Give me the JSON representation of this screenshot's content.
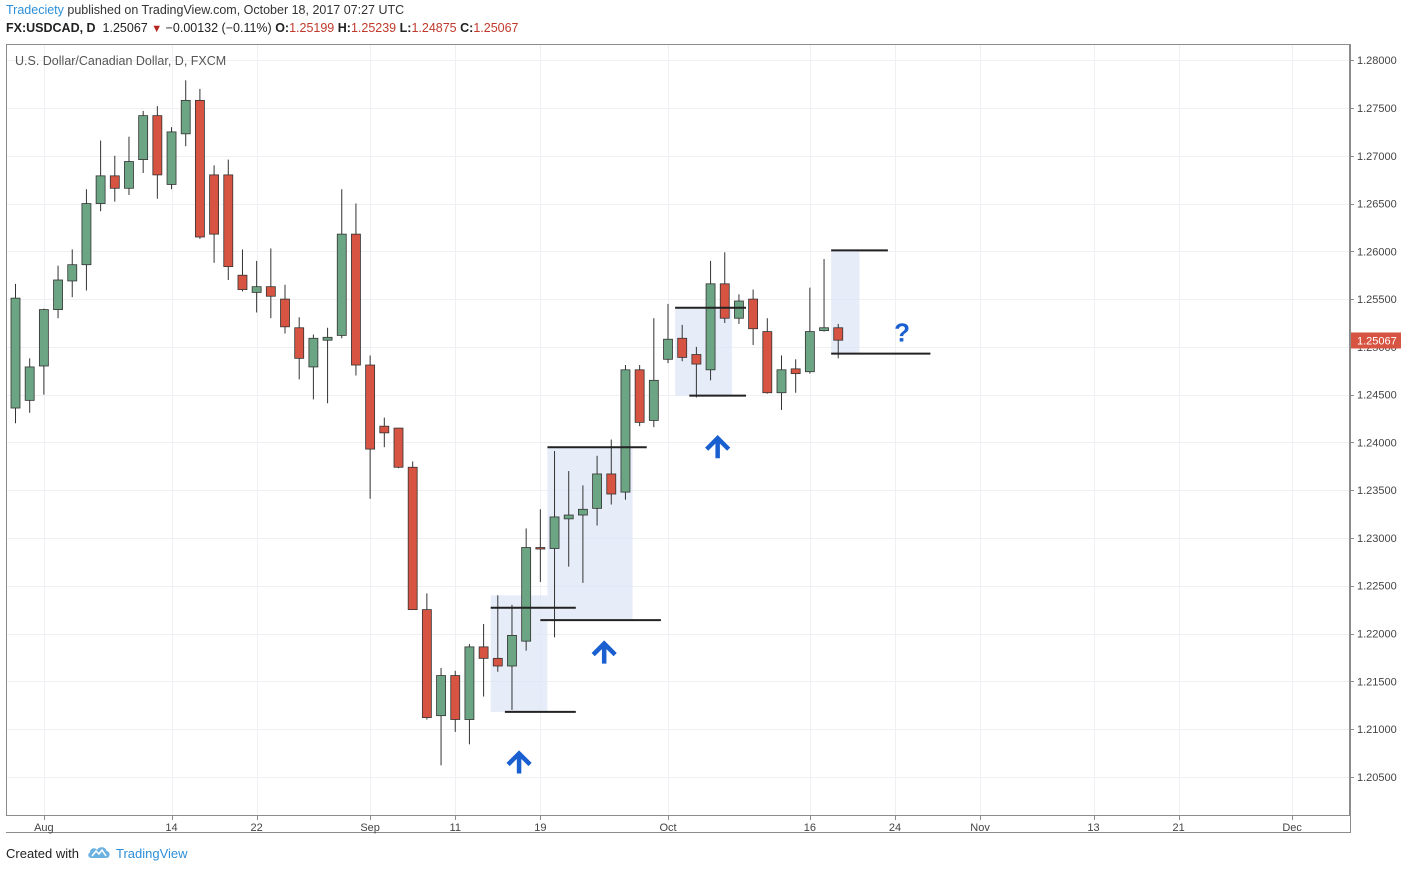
{
  "header": {
    "publisher": "Tradeciety",
    "published_text": "published on TradingView.com, October 18, 2017 07:27 UTC",
    "symbol": "FX:USDCAD, D",
    "last": "1.25067",
    "change": "−0.00132 (−0.11%)",
    "o_label": "O:",
    "o_value": "1.25199",
    "h_label": "H:",
    "h_value": "1.25239",
    "l_label": "L:",
    "l_value": "1.24875",
    "c_label": "C:",
    "c_value": "1.25067"
  },
  "footer": {
    "created_with": "Created with",
    "brand": "TradingView"
  },
  "colors": {
    "up": "#6ba583",
    "down": "#d75442",
    "outline": "#222222",
    "arrow": "#1a5fd0",
    "zone": "#dfe6f7",
    "price_tag": "#d75442"
  },
  "chart_data": {
    "type": "candlestick",
    "title": "U.S. Dollar/Canadian Dollar, D, FXCM",
    "ylim": [
      1.2009,
      1.2817
    ],
    "y_ticks": [
      1.205,
      1.21,
      1.215,
      1.22,
      1.225,
      1.23,
      1.235,
      1.24,
      1.245,
      1.25,
      1.255,
      1.26,
      1.265,
      1.27,
      1.275,
      1.28
    ],
    "y_tick_labels": [
      "1.20500",
      "1.21000",
      "1.21500",
      "1.22000",
      "1.22500",
      "1.23000",
      "1.23500",
      "1.24000",
      "1.24500",
      "1.25000",
      "1.25500",
      "1.26000",
      "1.26500",
      "1.27000",
      "1.27500",
      "1.28000"
    ],
    "x_tick_labels": [
      {
        "label": "Aug",
        "i": 2
      },
      {
        "label": "14",
        "i": 11
      },
      {
        "label": "22",
        "i": 17
      },
      {
        "label": "Sep",
        "i": 25
      },
      {
        "label": "11",
        "i": 31
      },
      {
        "label": "19",
        "i": 37
      },
      {
        "label": "Oct",
        "i": 46
      },
      {
        "label": "16",
        "i": 56
      },
      {
        "label": "24",
        "i": 62
      },
      {
        "label": "Nov",
        "i": 68
      },
      {
        "label": "13",
        "i": 76
      },
      {
        "label": "21",
        "i": 82
      },
      {
        "label": "Dec",
        "i": 90
      }
    ],
    "last_price_label": "1.25067",
    "last_price": 1.25067,
    "candles": [
      {
        "o": 1.2436,
        "h": 1.2566,
        "l": 1.242,
        "c": 1.2551
      },
      {
        "o": 1.2444,
        "h": 1.2488,
        "l": 1.2431,
        "c": 1.2479
      },
      {
        "o": 1.248,
        "h": 1.254,
        "l": 1.245,
        "c": 1.2539
      },
      {
        "o": 1.2539,
        "h": 1.2585,
        "l": 1.253,
        "c": 1.257
      },
      {
        "o": 1.2569,
        "h": 1.2602,
        "l": 1.2552,
        "c": 1.2586
      },
      {
        "o": 1.2586,
        "h": 1.2665,
        "l": 1.2559,
        "c": 1.265
      },
      {
        "o": 1.265,
        "h": 1.2716,
        "l": 1.2642,
        "c": 1.2679
      },
      {
        "o": 1.2679,
        "h": 1.27,
        "l": 1.2652,
        "c": 1.2666
      },
      {
        "o": 1.2666,
        "h": 1.272,
        "l": 1.2659,
        "c": 1.2694
      },
      {
        "o": 1.2696,
        "h": 1.2747,
        "l": 1.2682,
        "c": 1.2742
      },
      {
        "o": 1.2742,
        "h": 1.2752,
        "l": 1.2655,
        "c": 1.268
      },
      {
        "o": 1.267,
        "h": 1.273,
        "l": 1.2665,
        "c": 1.2725
      },
      {
        "o": 1.2723,
        "h": 1.2779,
        "l": 1.271,
        "c": 1.2758
      },
      {
        "o": 1.2758,
        "h": 1.277,
        "l": 1.2613,
        "c": 1.2615
      },
      {
        "o": 1.268,
        "h": 1.269,
        "l": 1.2588,
        "c": 1.2618
      },
      {
        "o": 1.268,
        "h": 1.2696,
        "l": 1.257,
        "c": 1.2584
      },
      {
        "o": 1.2575,
        "h": 1.2602,
        "l": 1.2558,
        "c": 1.256
      },
      {
        "o": 1.2557,
        "h": 1.259,
        "l": 1.2536,
        "c": 1.2563
      },
      {
        "o": 1.2563,
        "h": 1.2603,
        "l": 1.253,
        "c": 1.2553
      },
      {
        "o": 1.255,
        "h": 1.2565,
        "l": 1.2514,
        "c": 1.2521
      },
      {
        "o": 1.252,
        "h": 1.2531,
        "l": 1.2466,
        "c": 1.2488
      },
      {
        "o": 1.2479,
        "h": 1.2513,
        "l": 1.2445,
        "c": 1.2509
      },
      {
        "o": 1.2507,
        "h": 1.252,
        "l": 1.2441,
        "c": 1.251
      },
      {
        "o": 1.2512,
        "h": 1.2665,
        "l": 1.2509,
        "c": 1.2618
      },
      {
        "o": 1.2618,
        "h": 1.265,
        "l": 1.247,
        "c": 1.2481
      },
      {
        "o": 1.2481,
        "h": 1.2491,
        "l": 1.2341,
        "c": 1.2393
      },
      {
        "o": 1.2417,
        "h": 1.2426,
        "l": 1.2395,
        "c": 1.241
      },
      {
        "o": 1.2415,
        "h": 1.2415,
        "l": 1.2373,
        "c": 1.2374
      },
      {
        "o": 1.2374,
        "h": 1.238,
        "l": 1.2225,
        "c": 1.2225
      },
      {
        "o": 1.2225,
        "h": 1.2242,
        "l": 1.211,
        "c": 1.2112
      },
      {
        "o": 1.2114,
        "h": 1.2164,
        "l": 1.2062,
        "c": 1.2156
      },
      {
        "o": 1.2156,
        "h": 1.2161,
        "l": 1.2097,
        "c": 1.211
      },
      {
        "o": 1.211,
        "h": 1.2189,
        "l": 1.2084,
        "c": 1.2186
      },
      {
        "o": 1.2186,
        "h": 1.221,
        "l": 1.2134,
        "c": 1.2174
      },
      {
        "o": 1.2174,
        "h": 1.224,
        "l": 1.216,
        "c": 1.2166
      },
      {
        "o": 1.2166,
        "h": 1.223,
        "l": 1.212,
        "c": 1.2198
      },
      {
        "o": 1.2192,
        "h": 1.231,
        "l": 1.2182,
        "c": 1.229
      },
      {
        "o": 1.229,
        "h": 1.233,
        "l": 1.2254,
        "c": 1.2289
      },
      {
        "o": 1.2289,
        "h": 1.2391,
        "l": 1.2196,
        "c": 1.2322
      },
      {
        "o": 1.232,
        "h": 1.237,
        "l": 1.227,
        "c": 1.2324
      },
      {
        "o": 1.2324,
        "h": 1.2355,
        "l": 1.2253,
        "c": 1.233
      },
      {
        "o": 1.2331,
        "h": 1.2386,
        "l": 1.2313,
        "c": 1.2367
      },
      {
        "o": 1.2367,
        "h": 1.2403,
        "l": 1.2335,
        "c": 1.2346
      },
      {
        "o": 1.2348,
        "h": 1.2481,
        "l": 1.234,
        "c": 1.2476
      },
      {
        "o": 1.2476,
        "h": 1.2481,
        "l": 1.2417,
        "c": 1.2421
      },
      {
        "o": 1.2423,
        "h": 1.253,
        "l": 1.2416,
        "c": 1.2465
      },
      {
        "o": 1.2487,
        "h": 1.2545,
        "l": 1.2483,
        "c": 1.2508
      },
      {
        "o": 1.2509,
        "h": 1.2523,
        "l": 1.2485,
        "c": 1.2489
      },
      {
        "o": 1.2492,
        "h": 1.25,
        "l": 1.2447,
        "c": 1.2482
      },
      {
        "o": 1.2476,
        "h": 1.259,
        "l": 1.2465,
        "c": 1.2566
      },
      {
        "o": 1.2566,
        "h": 1.2599,
        "l": 1.2525,
        "c": 1.253
      },
      {
        "o": 1.253,
        "h": 1.2555,
        "l": 1.2524,
        "c": 1.2548
      },
      {
        "o": 1.255,
        "h": 1.256,
        "l": 1.2502,
        "c": 1.2519
      },
      {
        "o": 1.2516,
        "h": 1.253,
        "l": 1.2451,
        "c": 1.2452
      },
      {
        "o": 1.2452,
        "h": 1.2491,
        "l": 1.2434,
        "c": 1.2476
      },
      {
        "o": 1.2477,
        "h": 1.2487,
        "l": 1.2452,
        "c": 1.2472
      },
      {
        "o": 1.2474,
        "h": 1.2562,
        "l": 1.2472,
        "c": 1.2516
      },
      {
        "o": 1.2517,
        "h": 1.2592,
        "l": 1.2516,
        "c": 1.252
      },
      {
        "o": 1.252,
        "h": 1.2524,
        "l": 1.2488,
        "c": 1.2507
      }
    ],
    "annotations": {
      "horizontal_lines": [
        {
          "i1": 33.5,
          "i2": 39.5,
          "y": 1.2227
        },
        {
          "i1": 34.5,
          "i2": 39.5,
          "y": 1.2118
        },
        {
          "i1": 37.5,
          "i2": 44.5,
          "y": 1.2395
        },
        {
          "i1": 37.0,
          "i2": 45.5,
          "y": 1.2214
        },
        {
          "i1": 46.5,
          "i2": 51.5,
          "y": 1.2541
        },
        {
          "i1": 47.5,
          "i2": 51.5,
          "y": 1.2449
        },
        {
          "i1": 57.5,
          "i2": 61.5,
          "y": 1.2601
        },
        {
          "i1": 57.5,
          "i2": 64.5,
          "y": 1.2493
        }
      ],
      "zones": [
        {
          "i1": 33.5,
          "i2": 37.5,
          "y1": 1.2118,
          "y2": 1.224
        },
        {
          "i1": 37.5,
          "i2": 43.5,
          "y1": 1.2214,
          "y2": 1.2395
        },
        {
          "i1": 46.5,
          "i2": 50.5,
          "y1": 1.2449,
          "y2": 1.2541
        },
        {
          "i1": 57.5,
          "i2": 59.5,
          "y1": 1.2493,
          "y2": 1.2601
        }
      ],
      "up_arrows": [
        {
          "i": 35.5,
          "y": 1.2065
        },
        {
          "i": 41.5,
          "y": 1.218
        },
        {
          "i": 49.5,
          "y": 1.2395
        }
      ],
      "question_mark": {
        "text": "?",
        "i": 62.5,
        "y": 1.2515
      }
    }
  }
}
